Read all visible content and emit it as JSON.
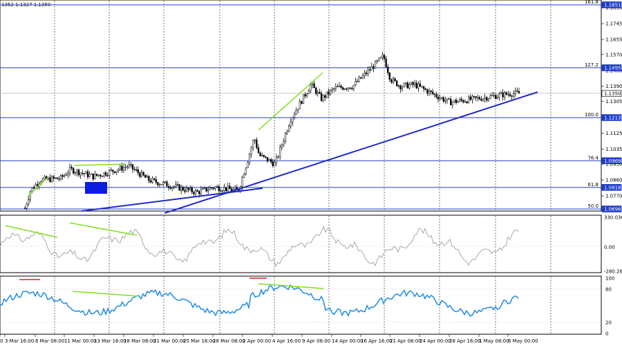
{
  "header": {
    "ohlc_readout": "1352 1.1327 1.1350"
  },
  "colors": {
    "fib_line": "#1e3cc8",
    "trend_line": "#1f28c8",
    "divergence_line": "#7fe020",
    "cci_line": "#a8a8a8",
    "rsi_line": "#1e8be8",
    "blue_box": "#0b1de0",
    "resistance_marker": "#e02020",
    "candles": "#000000"
  },
  "price_axis": {
    "ticks": [
      "1.1835",
      "1.1745",
      "1.1655",
      "1.1570",
      "1.1480",
      "1.1390",
      "1.1305",
      "1.1125",
      "1.1035",
      "1.0950",
      "1.0860",
      "1.0770"
    ]
  },
  "fib_levels": [
    {
      "label": "161.8",
      "value": "1.1851"
    },
    {
      "label": "127.2",
      "value": "1.1495"
    },
    {
      "label": "",
      "value": "1.1350"
    },
    {
      "label": "100.0",
      "value": "1.1213"
    },
    {
      "label": "76.4",
      "value": "1.0969"
    },
    {
      "label": "61.8",
      "value": "1.0818"
    },
    {
      "label": "50.0",
      "value": "1.0696"
    }
  ],
  "cci_axis": {
    "ticks": [
      "330.0361",
      "0.00",
      "-280.2846"
    ]
  },
  "rsi_axis": {
    "ticks": [
      "100",
      "80",
      "20",
      "0"
    ]
  },
  "time_axis": {
    "labels": [
      "0",
      "3 Mar 16:00",
      "6 Mar 08:00",
      "11 Mar 00:00",
      "13 Mar 16:00",
      "18 Mar 08:00",
      "21 Mar 00:00",
      "25 Mar 16:00",
      "28 Mar 08:00",
      "2 Apr 00:00",
      "4 Apr 16:00",
      "9 Apr 08:00",
      "14 Apr 00:00",
      "16 Apr 16:00",
      "21 Apr 08:00",
      "24 Apr 00:00",
      "28 Apr 16:00",
      "1 May 08:00",
      "6 May 00:00"
    ]
  },
  "chart_data": {
    "type": "candlestick",
    "symbol_timeframe": "H4",
    "x_range": [
      "3 Mar",
      "8 May"
    ],
    "price_ylim": [
      1.0696,
      1.187
    ],
    "price_series": {
      "name": "",
      "approx_close_path": [
        [
          "3 Mar",
          1.07
        ],
        [
          "4 Mar",
          1.08
        ],
        [
          "6 Mar",
          1.086
        ],
        [
          "10 Mar",
          1.087
        ],
        [
          "11 Mar",
          1.092
        ],
        [
          "13 Mar",
          1.088
        ],
        [
          "17 Mar",
          1.092
        ],
        [
          "18 Mar",
          1.094
        ],
        [
          "20 Mar",
          1.086
        ],
        [
          "24 Mar",
          1.082
        ],
        [
          "26 Mar",
          1.079
        ],
        [
          "28 Mar",
          1.082
        ],
        [
          "1 Apr",
          1.08
        ],
        [
          "3 Apr",
          1.11
        ],
        [
          "4 Apr",
          1.1
        ],
        [
          "8 Apr",
          1.095
        ],
        [
          "10 Apr",
          1.12
        ],
        [
          "11 Apr",
          1.14
        ],
        [
          "14 Apr",
          1.132
        ],
        [
          "16 Apr",
          1.138
        ],
        [
          "18 Apr",
          1.139
        ],
        [
          "21 Apr",
          1.156
        ],
        [
          "22 Apr",
          1.143
        ],
        [
          "24 Apr",
          1.139
        ],
        [
          "28 Apr",
          1.14
        ],
        [
          "1 May",
          1.13
        ],
        [
          "6 May",
          1.132
        ],
        [
          "7 May",
          1.135
        ]
      ]
    },
    "fib_levels": [
      1.1851,
      1.1495,
      1.1213,
      1.0969,
      1.0818,
      1.0696
    ],
    "cci": {
      "ylim": [
        -280.2846,
        330.0361
      ]
    },
    "rsi": {
      "ylim": [
        0,
        100
      ],
      "levels": [
        80,
        20
      ]
    }
  }
}
